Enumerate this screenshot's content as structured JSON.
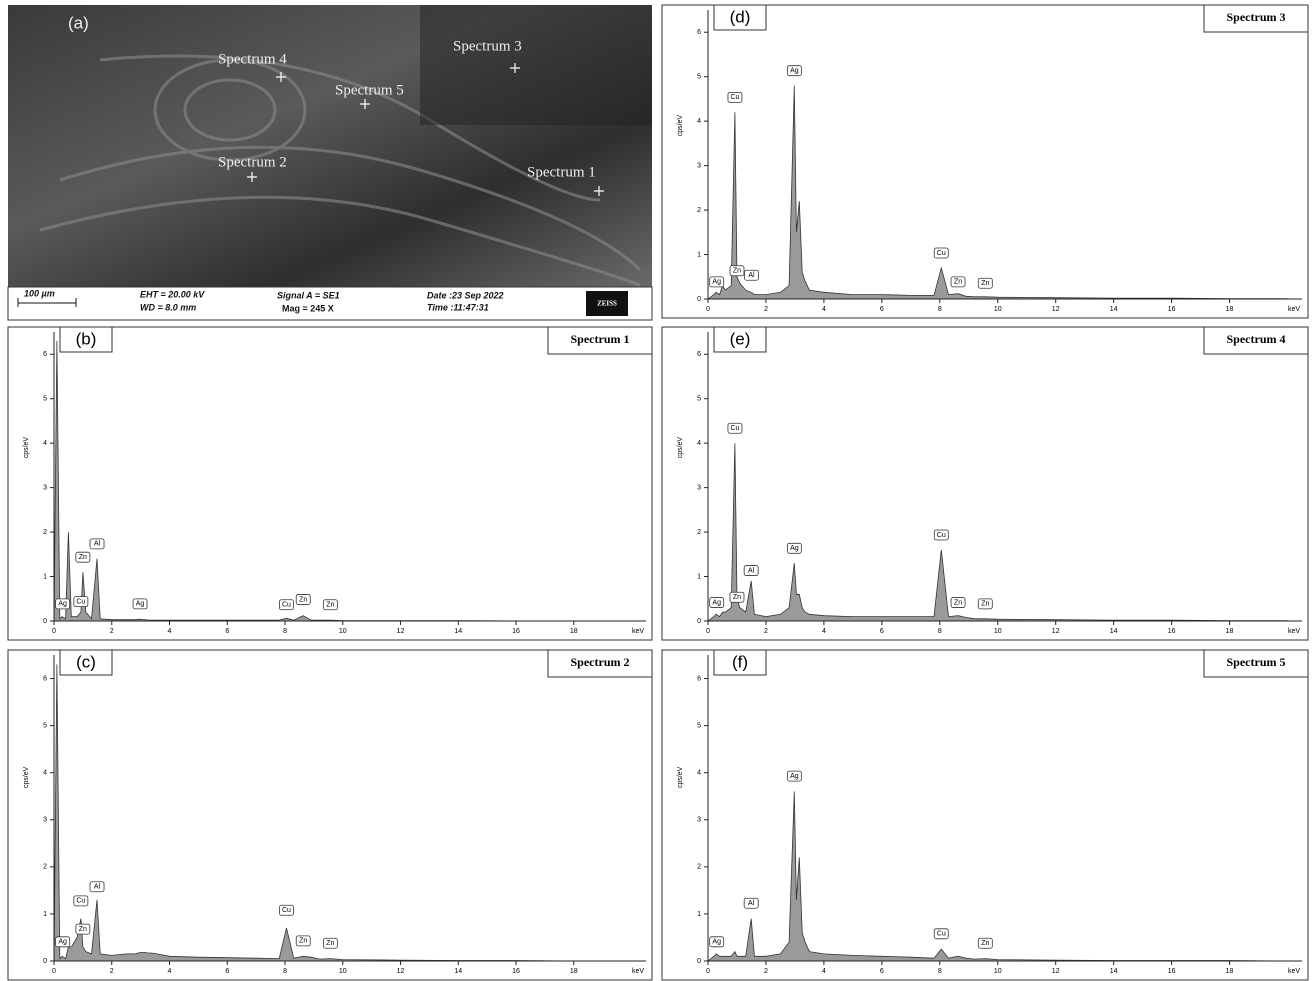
{
  "sem_image": {
    "panel": "(a)",
    "labels": [
      "Spectrum 4",
      "Spectrum 3",
      "Spectrum 5",
      "Spectrum 2",
      "Spectrum 1"
    ],
    "scale_bar": "100 µm",
    "eht": "EHT = 20.00 kV",
    "wd": "WD = 8.0 mm",
    "signal": "Signal A = SE1",
    "mag": "Mag =    245 X",
    "date": "Date :23 Sep 2022",
    "time": "Time :11:47:31",
    "logo": "ZEISS"
  },
  "chart_data": [
    {
      "type": "area",
      "panel": "(b)",
      "title": "Spectrum 1",
      "ylabel": "cps/eV",
      "xlabel": "keV",
      "color": "#9a9a9a",
      "x": [
        0,
        0.1,
        0.2,
        0.28,
        0.4,
        0.5,
        0.6,
        0.8,
        0.93,
        1.0,
        1.1,
        1.3,
        1.49,
        1.6,
        2.0,
        2.5,
        2.8,
        2.98,
        3.05,
        3.15,
        3.25,
        3.35,
        3.5,
        4,
        5,
        6,
        7,
        7.8,
        8.05,
        8.3,
        8.63,
        8.9,
        9.2,
        9.57,
        10,
        12,
        14,
        16,
        18,
        20
      ],
      "values": [
        0,
        6.3,
        0.05,
        0.1,
        0.05,
        2.0,
        0.1,
        0.1,
        0.2,
        1.1,
        0.2,
        0.05,
        1.4,
        0.05,
        0.03,
        0.03,
        0.03,
        0.04,
        0.03,
        0.03,
        0.02,
        0.02,
        0.02,
        0.02,
        0.02,
        0.02,
        0.02,
        0.02,
        0.06,
        0.02,
        0.12,
        0.02,
        0.02,
        0.02,
        0.01,
        0.01,
        0.01,
        0,
        0,
        0
      ],
      "annotations": [
        {
          "label": "Ag",
          "x": 0.3,
          "y": 0.25
        },
        {
          "label": "Cu",
          "x": 0.93,
          "y": 0.3
        },
        {
          "label": "Zn",
          "x": 1.0,
          "y": 1.3
        },
        {
          "label": "Al",
          "x": 1.49,
          "y": 1.6
        },
        {
          "label": "Ag",
          "x": 2.98,
          "y": 0.25
        },
        {
          "label": "Cu",
          "x": 8.05,
          "y": 0.23
        },
        {
          "label": "Zn",
          "x": 8.63,
          "y": 0.35
        },
        {
          "label": "Zn",
          "x": 9.57,
          "y": 0.23
        }
      ],
      "xlim": [
        0,
        20.5
      ],
      "ylim": [
        0,
        6.5
      ],
      "xticks": [
        0,
        2,
        4,
        6,
        8,
        10,
        12,
        14,
        16,
        18
      ],
      "yticks": [
        0,
        1,
        2,
        3,
        4,
        5,
        6
      ]
    },
    {
      "type": "area",
      "panel": "(c)",
      "title": "Spectrum 2",
      "ylabel": "cps/eV",
      "xlabel": "keV",
      "color": "#9a9a9a",
      "x": [
        0,
        0.1,
        0.2,
        0.28,
        0.4,
        0.5,
        0.6,
        0.8,
        0.93,
        1.0,
        1.1,
        1.3,
        1.49,
        1.6,
        2.0,
        2.5,
        2.8,
        2.98,
        3.05,
        3.15,
        3.25,
        3.35,
        3.5,
        4,
        5,
        6,
        7,
        7.8,
        8.05,
        8.3,
        8.63,
        8.9,
        9.2,
        9.57,
        10,
        12,
        14,
        16,
        18,
        20
      ],
      "values": [
        0,
        6.3,
        0.05,
        0.1,
        0.05,
        0.3,
        0.3,
        0.5,
        0.9,
        0.3,
        0.2,
        0.15,
        1.3,
        0.15,
        0.12,
        0.15,
        0.15,
        0.18,
        0.18,
        0.18,
        0.17,
        0.17,
        0.16,
        0.1,
        0.08,
        0.07,
        0.06,
        0.05,
        0.7,
        0.06,
        0.1,
        0.08,
        0.04,
        0.05,
        0.03,
        0.02,
        0.01,
        0.01,
        0,
        0
      ],
      "annotations": [
        {
          "label": "Ag",
          "x": 0.3,
          "y": 0.28
        },
        {
          "label": "Zn",
          "x": 1.0,
          "y": 0.55
        },
        {
          "label": "Cu",
          "x": 0.93,
          "y": 1.15
        },
        {
          "label": "Al",
          "x": 1.49,
          "y": 1.45
        },
        {
          "label": "Cu",
          "x": 8.05,
          "y": 0.95
        },
        {
          "label": "Zn",
          "x": 8.63,
          "y": 0.3
        },
        {
          "label": "Zn",
          "x": 9.57,
          "y": 0.25
        }
      ],
      "xlim": [
        0,
        20.5
      ],
      "ylim": [
        0,
        6.5
      ],
      "xticks": [
        0,
        2,
        4,
        6,
        8,
        10,
        12,
        14,
        16,
        18
      ],
      "yticks": [
        0,
        1,
        2,
        3,
        4,
        5,
        6
      ]
    },
    {
      "type": "area",
      "panel": "(d)",
      "title": "Spectrum 3",
      "ylabel": "cps/eV",
      "xlabel": "keV",
      "color": "#9a9a9a",
      "x": [
        0,
        0.1,
        0.2,
        0.28,
        0.4,
        0.5,
        0.6,
        0.8,
        0.93,
        1.0,
        1.1,
        1.3,
        1.49,
        1.6,
        2.0,
        2.5,
        2.8,
        2.98,
        3.05,
        3.15,
        3.25,
        3.35,
        3.5,
        4,
        5,
        6,
        7,
        7.8,
        8.05,
        8.3,
        8.63,
        8.9,
        9.2,
        9.57,
        10,
        12,
        14,
        16,
        18,
        20
      ],
      "values": [
        0,
        0.05,
        0.1,
        0.15,
        0.1,
        0.3,
        0.2,
        0.3,
        4.2,
        0.5,
        0.35,
        0.2,
        0.15,
        0.1,
        0.1,
        0.15,
        0.3,
        4.8,
        1.5,
        2.2,
        0.6,
        0.4,
        0.2,
        0.15,
        0.1,
        0.1,
        0.08,
        0.08,
        0.7,
        0.1,
        0.12,
        0.06,
        0.05,
        0.05,
        0.04,
        0.03,
        0.02,
        0.02,
        0.01,
        0.01
      ],
      "annotations": [
        {
          "label": "Ag",
          "x": 0.3,
          "y": 0.25
        },
        {
          "label": "Zn",
          "x": 1.0,
          "y": 0.5
        },
        {
          "label": "Al",
          "x": 1.5,
          "y": 0.4
        },
        {
          "label": "Cu",
          "x": 0.93,
          "y": 4.4
        },
        {
          "label": "Ag",
          "x": 2.98,
          "y": 5.0
        },
        {
          "label": "Cu",
          "x": 8.05,
          "y": 0.9
        },
        {
          "label": "Zn",
          "x": 8.63,
          "y": 0.25
        },
        {
          "label": "Zn",
          "x": 9.57,
          "y": 0.22
        }
      ],
      "xlim": [
        0,
        20.5
      ],
      "ylim": [
        0,
        6.5
      ],
      "xticks": [
        0,
        2,
        4,
        6,
        8,
        10,
        12,
        14,
        16,
        18
      ],
      "yticks": [
        0,
        1,
        2,
        3,
        4,
        5,
        6
      ]
    },
    {
      "type": "area",
      "panel": "(e)",
      "title": "Spectrum 4",
      "ylabel": "cps/eV",
      "xlabel": "keV",
      "color": "#9a9a9a",
      "x": [
        0,
        0.1,
        0.2,
        0.28,
        0.4,
        0.5,
        0.6,
        0.8,
        0.93,
        1.0,
        1.1,
        1.3,
        1.49,
        1.6,
        2.0,
        2.5,
        2.8,
        2.98,
        3.05,
        3.15,
        3.25,
        3.35,
        3.5,
        4,
        5,
        6,
        7,
        7.8,
        8.05,
        8.3,
        8.63,
        8.9,
        9.2,
        9.57,
        10,
        12,
        14,
        16,
        18,
        20
      ],
      "values": [
        0,
        0.05,
        0.1,
        0.15,
        0.1,
        0.2,
        0.2,
        0.3,
        4.0,
        0.5,
        0.3,
        0.2,
        0.9,
        0.15,
        0.1,
        0.15,
        0.3,
        1.3,
        0.6,
        0.6,
        0.3,
        0.2,
        0.15,
        0.12,
        0.1,
        0.1,
        0.1,
        0.1,
        1.6,
        0.1,
        0.12,
        0.08,
        0.05,
        0.05,
        0.04,
        0.03,
        0.02,
        0.02,
        0.01,
        0.01
      ],
      "annotations": [
        {
          "label": "Ag",
          "x": 0.3,
          "y": 0.28
        },
        {
          "label": "Zn",
          "x": 1.0,
          "y": 0.4
        },
        {
          "label": "Cu",
          "x": 0.93,
          "y": 4.2
        },
        {
          "label": "Al",
          "x": 1.49,
          "y": 1.0
        },
        {
          "label": "Ag",
          "x": 2.98,
          "y": 1.5
        },
        {
          "label": "Cu",
          "x": 8.05,
          "y": 1.8
        },
        {
          "label": "Zn",
          "x": 8.63,
          "y": 0.28
        },
        {
          "label": "Zn",
          "x": 9.57,
          "y": 0.25
        }
      ],
      "xlim": [
        0,
        20.5
      ],
      "ylim": [
        0,
        6.5
      ],
      "xticks": [
        0,
        2,
        4,
        6,
        8,
        10,
        12,
        14,
        16,
        18
      ],
      "yticks": [
        0,
        1,
        2,
        3,
        4,
        5,
        6
      ]
    },
    {
      "type": "area",
      "panel": "(f)",
      "title": "Spectrum 5",
      "ylabel": "cps/eV",
      "xlabel": "keV",
      "color": "#9a9a9a",
      "x": [
        0,
        0.1,
        0.2,
        0.28,
        0.4,
        0.5,
        0.6,
        0.8,
        0.93,
        1.0,
        1.1,
        1.3,
        1.49,
        1.6,
        2.0,
        2.5,
        2.8,
        2.98,
        3.05,
        3.15,
        3.25,
        3.35,
        3.5,
        4,
        5,
        6,
        7,
        7.8,
        8.05,
        8.3,
        8.63,
        8.9,
        9.2,
        9.57,
        10,
        12,
        14,
        16,
        18,
        20
      ],
      "values": [
        0,
        0.05,
        0.1,
        0.15,
        0.1,
        0.1,
        0.1,
        0.1,
        0.2,
        0.1,
        0.1,
        0.1,
        0.9,
        0.1,
        0.1,
        0.15,
        0.4,
        3.6,
        1.3,
        2.2,
        0.6,
        0.4,
        0.2,
        0.15,
        0.12,
        0.1,
        0.08,
        0.06,
        0.25,
        0.06,
        0.1,
        0.06,
        0.04,
        0.05,
        0.03,
        0.02,
        0.01,
        0.01,
        0.01,
        0
      ],
      "annotations": [
        {
          "label": "Ag",
          "x": 0.3,
          "y": 0.28
        },
        {
          "label": "Al",
          "x": 1.49,
          "y": 1.1
        },
        {
          "label": "Ag",
          "x": 2.98,
          "y": 3.8
        },
        {
          "label": "Cu",
          "x": 8.05,
          "y": 0.45
        },
        {
          "label": "Zn",
          "x": 9.57,
          "y": 0.25
        }
      ],
      "xlim": [
        0,
        20.5
      ],
      "ylim": [
        0,
        6.5
      ],
      "xticks": [
        0,
        2,
        4,
        6,
        8,
        10,
        12,
        14,
        16,
        18
      ],
      "yticks": [
        0,
        1,
        2,
        3,
        4,
        5,
        6
      ]
    }
  ]
}
